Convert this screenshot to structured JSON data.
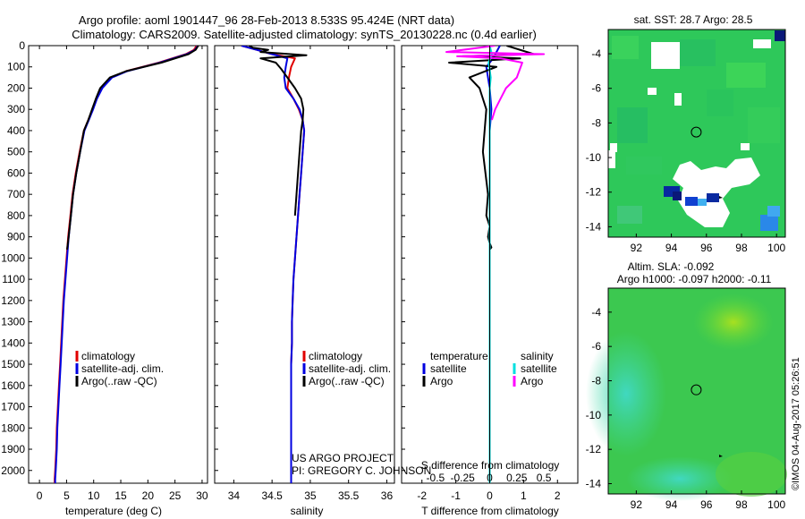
{
  "header": {
    "title_line1": "Argo profile: aoml 1901447_96 28-Feb-2013 8.533S 95.424E (NRT data)",
    "title_line2": "Climatology: CARS2009. Satellite-adjusted climatology: synTS_20130228.nc (0.4d earlier)"
  },
  "colors": {
    "climatology": "#e00000",
    "satellite": "#0000e0",
    "argo": "#000000",
    "sal_satellite": "#00e0e0",
    "sal_argo": "#ff00ff"
  },
  "chart_data": [
    {
      "type": "line",
      "name": "temperature-profile",
      "xlabel": "temperature (deg C)",
      "ylabel": "",
      "xlim": [
        -2,
        31
      ],
      "ylim": [
        2060,
        0
      ],
      "xticks": [
        "0",
        "5",
        "10",
        "15",
        "20",
        "25",
        "30"
      ],
      "xtick_values": [
        0,
        5,
        10,
        15,
        20,
        25,
        30
      ],
      "yticks": [
        "0",
        "100",
        "200",
        "300",
        "400",
        "500",
        "600",
        "700",
        "800",
        "900",
        "1000",
        "1100",
        "1200",
        "1300",
        "1400",
        "1500",
        "1600",
        "1700",
        "1800",
        "1900",
        "2000"
      ],
      "ytick_values": [
        0,
        100,
        200,
        300,
        400,
        500,
        600,
        700,
        800,
        900,
        1000,
        1100,
        1200,
        1300,
        1400,
        1500,
        1600,
        1700,
        1800,
        1900,
        2000
      ],
      "legend": [
        "climatology",
        "satellite-adj. clim.",
        "Argo(..raw -QC)"
      ],
      "series": [
        {
          "name": "climatology",
          "color": "#e00000",
          "x": [
            29,
            28.5,
            27,
            22,
            16,
            13.3,
            11.5,
            10.5,
            9.8,
            9,
            8.2,
            7.4,
            6.7,
            6.1,
            5.7,
            5.3,
            5,
            4.7,
            4.4,
            4.2,
            4,
            3.8,
            3.6,
            3.4,
            3.2,
            3.1,
            3,
            2.9,
            2.8,
            2.8
          ],
          "y": [
            0,
            20,
            40,
            80,
            120,
            150,
            200,
            250,
            300,
            350,
            400,
            500,
            600,
            700,
            800,
            900,
            1000,
            1100,
            1200,
            1300,
            1400,
            1500,
            1600,
            1700,
            1800,
            1900,
            1950,
            2000,
            2040,
            2060
          ]
        },
        {
          "name": "satellite-adj. clim.",
          "color": "#0000e0",
          "x": [
            29.2,
            28.7,
            27.2,
            22.2,
            16.2,
            13.4,
            11.6,
            10.6,
            9.9,
            9.1,
            8.3,
            7.5,
            6.8,
            6.2,
            5.8,
            5.4,
            5.1,
            4.8,
            4.5,
            4.3,
            4.1,
            3.9,
            3.7,
            3.5,
            3.3,
            3.2,
            3.1,
            3,
            2.9,
            2.9
          ],
          "y": [
            0,
            20,
            40,
            80,
            120,
            150,
            200,
            250,
            300,
            350,
            400,
            500,
            600,
            700,
            800,
            900,
            1000,
            1100,
            1200,
            1300,
            1400,
            1500,
            1600,
            1700,
            1800,
            1900,
            1950,
            2000,
            2040,
            2060
          ]
        },
        {
          "name": "Argo",
          "color": "#000000",
          "x": [
            29.3,
            28.8,
            27.5,
            22.5,
            16,
            13,
            11.2,
            10.4,
            9.7,
            9,
            8.2,
            7.5,
            6.8,
            6.2,
            5.8,
            5.4,
            5.1
          ],
          "y": [
            0,
            20,
            40,
            80,
            120,
            150,
            200,
            250,
            300,
            350,
            400,
            500,
            600,
            700,
            800,
            900,
            960
          ]
        }
      ]
    },
    {
      "type": "line",
      "name": "salinity-profile",
      "xlabel": "salinity",
      "xlim": [
        33.75,
        36.1
      ],
      "ylim": [
        2060,
        0
      ],
      "xticks": [
        "34",
        "34.5",
        "35",
        "35.5",
        "36"
      ],
      "xtick_values": [
        34,
        34.5,
        35,
        35.5,
        36
      ],
      "legend": [
        "climatology",
        "satellite-adj. clim.",
        "Argo(..raw -QC)"
      ],
      "annotation_line1": "US ARGO PROJECT",
      "annotation_line2": "PI: GREGORY C. JOHNSON",
      "series": [
        {
          "name": "climatology",
          "color": "#e00000",
          "x": [
            34.1,
            34.3,
            34.5,
            34.8,
            34.75,
            34.72,
            34.7,
            34.78,
            34.85,
            34.9,
            34.92,
            34.9,
            34.88,
            34.86,
            34.84,
            34.82,
            34.8,
            34.78,
            34.77,
            34.76,
            34.76,
            34.75,
            34.75,
            34.75,
            34.75,
            34.75,
            34.75,
            34.75,
            34.75
          ],
          "y": [
            0,
            20,
            40,
            60,
            100,
            150,
            200,
            250,
            300,
            350,
            400,
            500,
            600,
            700,
            800,
            900,
            1000,
            1100,
            1200,
            1300,
            1400,
            1500,
            1600,
            1700,
            1800,
            1900,
            2000,
            2040,
            2060
          ]
        },
        {
          "name": "satellite-adj. clim.",
          "color": "#0000e0",
          "x": [
            34.1,
            34.3,
            34.5,
            34.7,
            34.68,
            34.66,
            34.68,
            34.78,
            34.86,
            34.9,
            34.92,
            34.9,
            34.88,
            34.86,
            34.84,
            34.82,
            34.8,
            34.78,
            34.77,
            34.76,
            34.76,
            34.75,
            34.75,
            34.75,
            34.75,
            34.75,
            34.75,
            34.75,
            34.75
          ],
          "y": [
            0,
            20,
            40,
            60,
            100,
            150,
            200,
            250,
            300,
            350,
            400,
            500,
            600,
            700,
            800,
            900,
            1000,
            1100,
            1200,
            1300,
            1400,
            1500,
            1600,
            1700,
            1800,
            1900,
            2000,
            2040,
            2060
          ]
        },
        {
          "name": "Argo",
          "color": "#000000",
          "x": [
            34.2,
            34.25,
            34.45,
            34.35,
            34.95,
            34.35,
            34.55,
            34.62,
            34.7,
            34.8,
            34.88,
            34.91,
            34.9,
            34.88,
            34.86,
            34.84,
            34.82,
            34.8
          ],
          "y": [
            0,
            10,
            20,
            30,
            45,
            60,
            80,
            110,
            150,
            200,
            250,
            300,
            350,
            400,
            500,
            600,
            700,
            800
          ]
        }
      ]
    },
    {
      "type": "line",
      "name": "difference-profile",
      "xlabel": "T difference from climatology",
      "xlabel_top": "S difference from climatology",
      "xlim": [
        -2.6,
        2.6
      ],
      "ylim": [
        2060,
        0
      ],
      "xticks": [
        "-2",
        "-1",
        "0",
        "1",
        "2"
      ],
      "xtick_values": [
        -2,
        -1,
        0,
        1,
        2
      ],
      "xticks_s": [
        "-0.5",
        "-0.25",
        "0",
        "0.25",
        "0.5"
      ],
      "xtick_values_s": [
        -0.5,
        -0.25,
        0,
        0.25,
        0.5
      ],
      "legend_temp_title": "temperature",
      "legend_sal_title": "salinity",
      "legend_temp": [
        "satellite",
        "Argo"
      ],
      "legend_sal": [
        "satellite",
        "Argo"
      ],
      "series": [
        {
          "name": "T satellite",
          "color": "#0000e0",
          "x": [
            0.3,
            0.2,
            0.1,
            -0.1,
            -0.05,
            0,
            0.05,
            0,
            0,
            0,
            0,
            0,
            0,
            0,
            0,
            0,
            0
          ],
          "y": [
            0,
            30,
            60,
            100,
            150,
            200,
            300,
            400,
            600,
            800,
            1000,
            1200,
            1400,
            1600,
            1800,
            2000,
            2060
          ]
        },
        {
          "name": "T Argo",
          "color": "#000000",
          "x": [
            0.5,
            1.3,
            -0.8,
            0.9,
            -1.2,
            0.2,
            -0.6,
            -0.3,
            -0.1,
            -0.2,
            -0.05,
            -0.1,
            0,
            -0.05,
            0,
            0.05,
            0
          ],
          "y": [
            0,
            40,
            50,
            60,
            80,
            100,
            150,
            200,
            300,
            500,
            700,
            800,
            850,
            900,
            930,
            950,
            960
          ]
        },
        {
          "name": "S satellite",
          "color": "#00e0e0",
          "x": [
            0,
            0.02,
            -0.01,
            0.01,
            0,
            0,
            0,
            0,
            0,
            0,
            0,
            0,
            0,
            0
          ],
          "y": [
            0,
            40,
            80,
            150,
            200,
            300,
            500,
            700,
            900,
            1100,
            1300,
            1500,
            1800,
            2060
          ]
        },
        {
          "name": "S Argo",
          "color": "#ff00ff",
          "x": [
            0.05,
            -0.4,
            0.5,
            -0.3,
            0.1,
            0.3,
            0.25,
            0.15,
            0.1,
            0.05,
            0.02
          ],
          "y": [
            0,
            30,
            40,
            50,
            60,
            80,
            150,
            200,
            250,
            300,
            350
          ]
        }
      ]
    },
    {
      "type": "heatmap",
      "name": "sst-map",
      "title": "sat. SST: 28.7 Argo: 28.5",
      "xticks": [
        "92",
        "94",
        "96",
        "98",
        "100"
      ],
      "xtick_values": [
        92,
        94,
        96,
        98,
        100
      ],
      "yticks": [
        "-4",
        "-6",
        "-8",
        "-10",
        "-12",
        "-14"
      ],
      "ytick_values": [
        -4,
        -6,
        -8,
        -10,
        -12,
        -14
      ],
      "xlim": [
        90.4,
        100.5
      ],
      "ylim": [
        -14.6,
        -2.6
      ],
      "marker": {
        "lon": 95.42,
        "lat": -8.53
      }
    },
    {
      "type": "heatmap",
      "name": "sla-map",
      "title_line1": "Altim. SLA: -0.092",
      "title_line2": "Argo h1000: -0.097 h2000: -0.11",
      "xticks": [
        "92",
        "94",
        "96",
        "98",
        "100"
      ],
      "xtick_values": [
        92,
        94,
        96,
        98,
        100
      ],
      "yticks": [
        "-4",
        "-6",
        "-8",
        "-10",
        "-12",
        "-14"
      ],
      "ytick_values": [
        -4,
        -6,
        -8,
        -10,
        -12,
        -14
      ],
      "xlim": [
        90.4,
        100.5
      ],
      "ylim": [
        -14.6,
        -2.6
      ],
      "marker": {
        "lon": 95.42,
        "lat": -8.53
      }
    }
  ],
  "footer": {
    "stamp": "©IMOS 04-Aug-2017 05:26:51"
  }
}
